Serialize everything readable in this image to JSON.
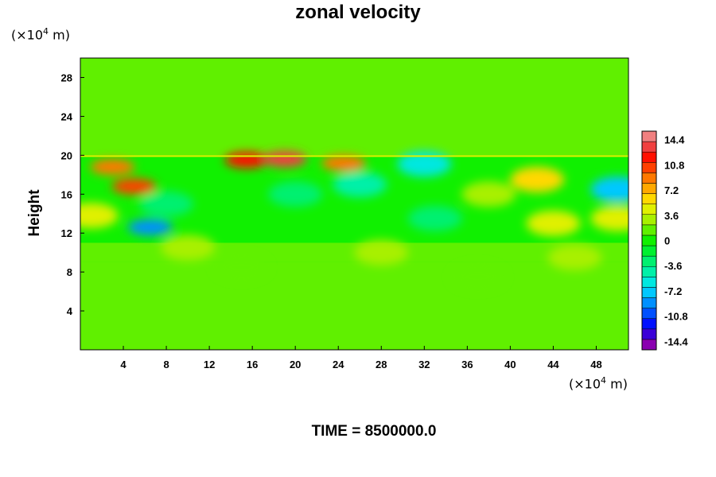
{
  "chart_data": {
    "type": "heatmap",
    "title": "zonal velocity",
    "ylabel": "Height",
    "y_unit_prefix": "(×10",
    "unit_exp": "4",
    "unit_suffix": " m)",
    "x_unit_prefix": "(×10",
    "xlim": [
      0,
      51
    ],
    "ylim": [
      0,
      30
    ],
    "x_ticks": [
      "4",
      "8",
      "12",
      "16",
      "20",
      "24",
      "28",
      "32",
      "36",
      "40",
      "44",
      "48"
    ],
    "y_ticks": [
      "4",
      "8",
      "12",
      "16",
      "20",
      "24",
      "28"
    ],
    "colorbar": {
      "min": -15.6,
      "max": 15.6,
      "tick_labels": [
        "14.4",
        "10.8",
        "7.2",
        "3.6",
        "0",
        "-3.6",
        "-7.2",
        "-10.8",
        "-14.4"
      ],
      "colors": [
        "#8a00b0",
        "#3a00d8",
        "#0010ff",
        "#0050ff",
        "#0090ff",
        "#00c8ff",
        "#00e8e0",
        "#00f0a8",
        "#00f070",
        "#00f030",
        "#10f000",
        "#60f000",
        "#a8f000",
        "#e0f000",
        "#ffd800",
        "#ffa800",
        "#ff7800",
        "#ff4000",
        "#ff1000",
        "#f04040",
        "#f08080"
      ]
    },
    "features": [
      {
        "x": 15.5,
        "y": 19.5,
        "value": 12.0
      },
      {
        "x": 19.0,
        "y": 19.6,
        "value": 13.0
      },
      {
        "x": 24.5,
        "y": 19.2,
        "value": 9.0
      },
      {
        "x": 3.0,
        "y": 18.8,
        "value": 9.0
      },
      {
        "x": 5.0,
        "y": 16.8,
        "value": 11.0
      },
      {
        "x": 1.0,
        "y": 13.8,
        "value": 5.0
      },
      {
        "x": 6.5,
        "y": 12.6,
        "value": -9.0
      },
      {
        "x": 32.0,
        "y": 19.1,
        "value": -6.0
      },
      {
        "x": 50.0,
        "y": 16.5,
        "value": -8.0
      },
      {
        "x": 42.5,
        "y": 17.5,
        "value": 6.0
      },
      {
        "x": 44.0,
        "y": 13.0,
        "value": 4.0
      },
      {
        "x": 50.0,
        "y": 13.5,
        "value": 4.0
      },
      {
        "x": 26.0,
        "y": 17.0,
        "value": -4.0
      },
      {
        "x": 33.0,
        "y": 13.5,
        "value": -3.0
      },
      {
        "x": 10.0,
        "y": 10.5,
        "value": 3.0
      },
      {
        "x": 28.0,
        "y": 10.0,
        "value": 2.5
      },
      {
        "x": 46.0,
        "y": 9.5,
        "value": 3.0
      },
      {
        "x": 15.0,
        "y": 8.5,
        "value": 2.0
      },
      {
        "x": 37.0,
        "y": 7.5,
        "value": 2.0
      },
      {
        "x": 8.0,
        "y": 15.0,
        "value": -3.0
      },
      {
        "x": 20.0,
        "y": 16.0,
        "value": -2.5
      },
      {
        "x": 38.0,
        "y": 16.0,
        "value": 3.0
      }
    ]
  },
  "footer": {
    "time_label": "TIME = 8500000.0"
  }
}
